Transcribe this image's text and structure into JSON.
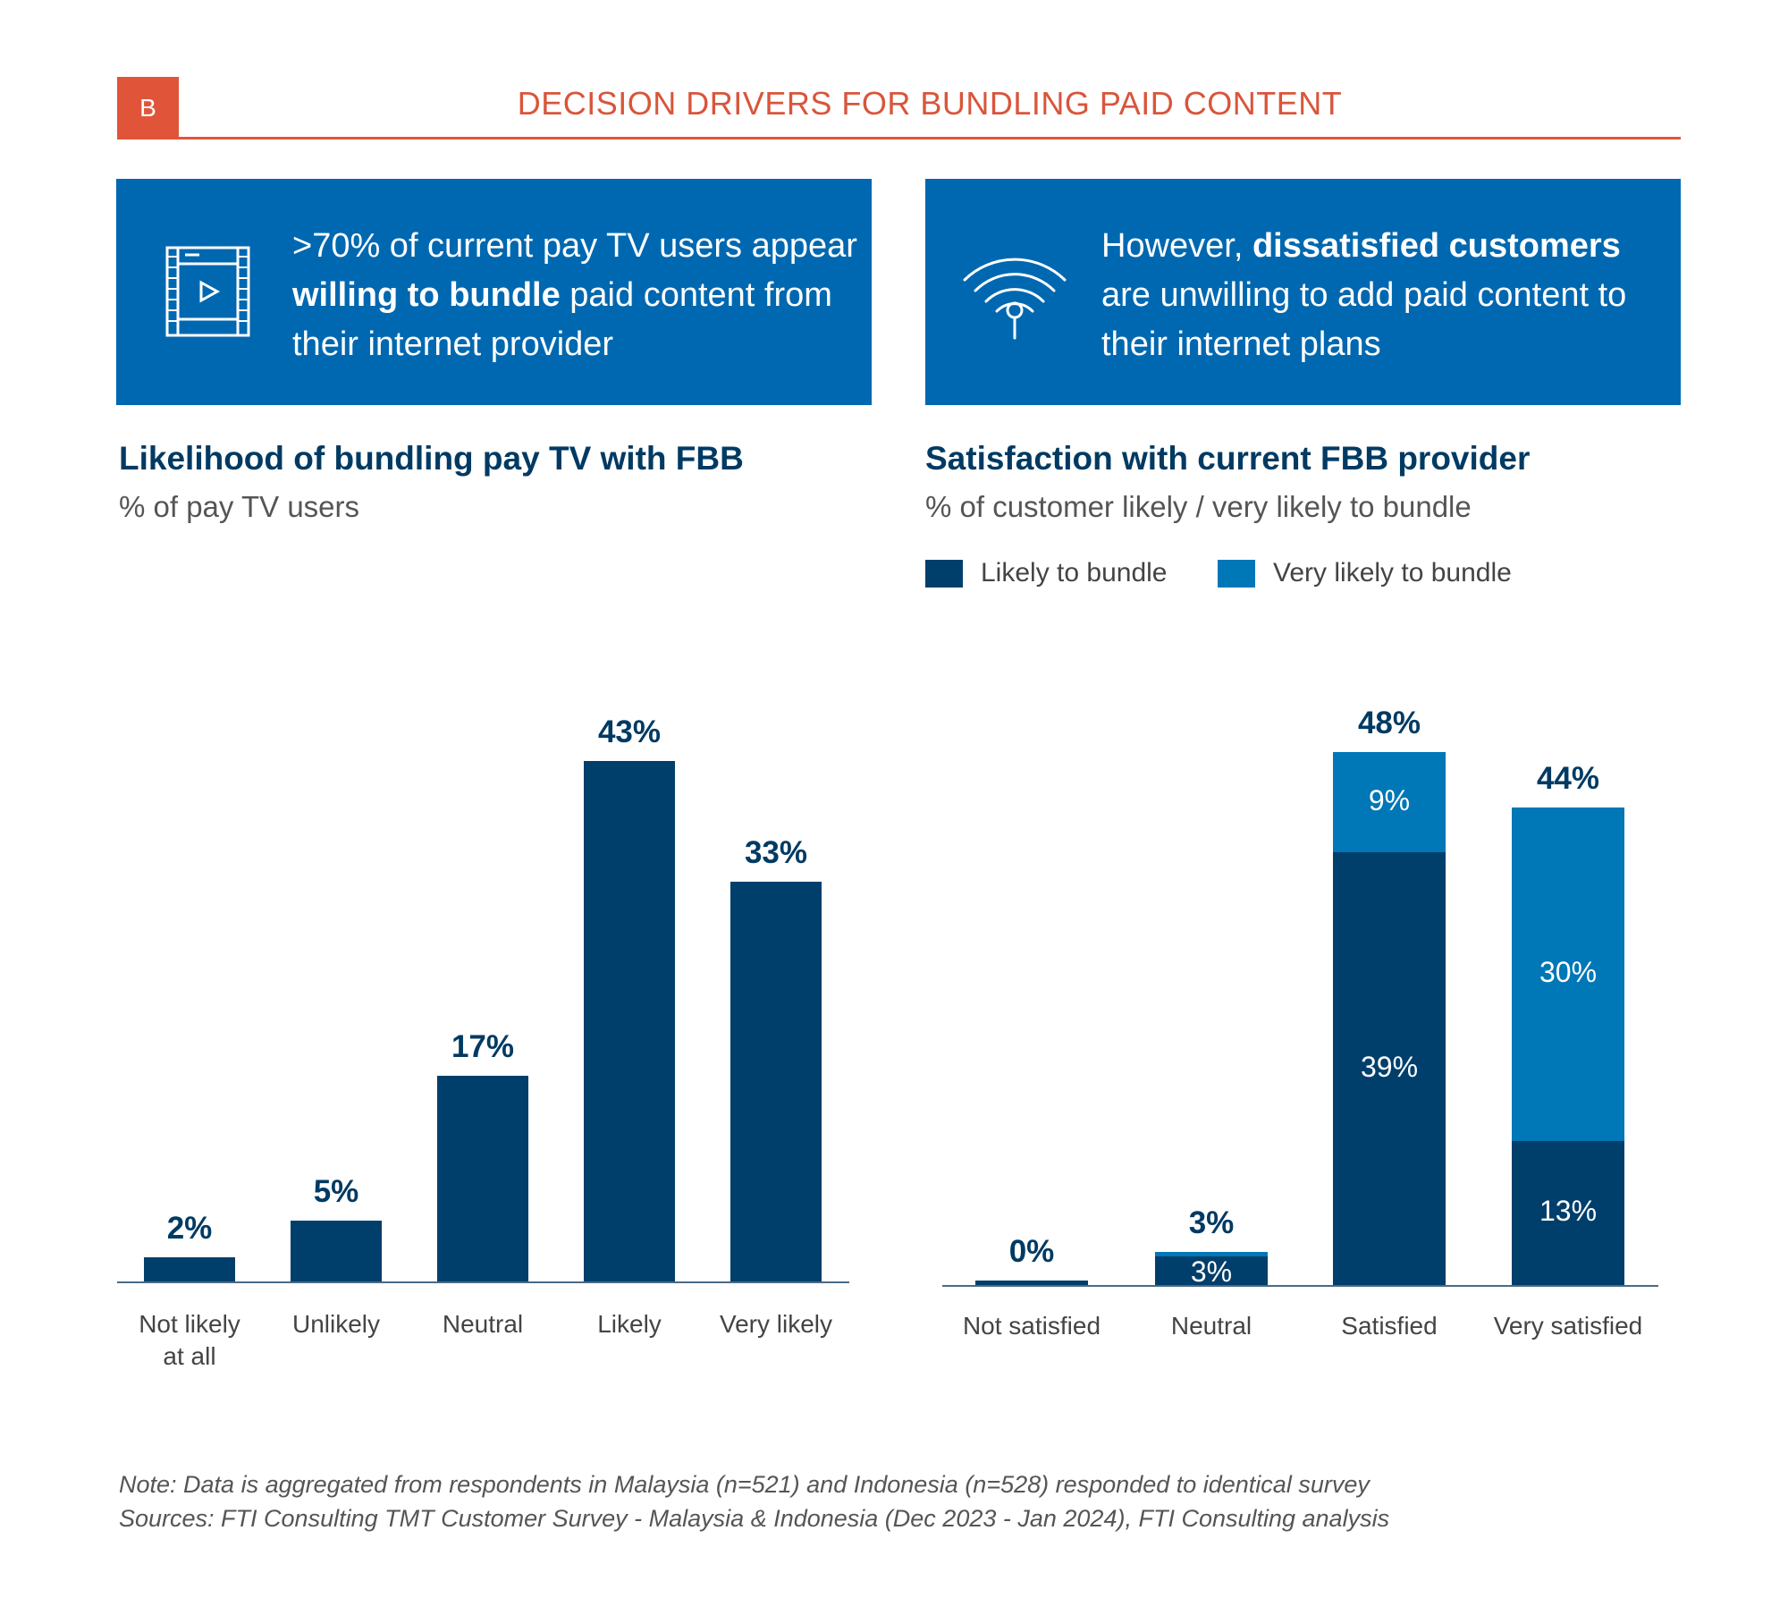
{
  "header": {
    "badge": "B",
    "title": "DECISION DRIVERS FOR BUNDLING PAID CONTENT"
  },
  "callouts": [
    {
      "icon": "film-play-icon",
      "parts": [
        ">70% of current pay TV users appear ",
        "willing to bundle",
        " paid content from their internet provider"
      ]
    },
    {
      "icon": "wifi-signal-icon",
      "parts": [
        "However, ",
        "dissatisfied customers",
        " are unwilling to add paid content to their internet plans"
      ]
    }
  ],
  "colors": {
    "dark": "#003f6b",
    "light": "#0077b6",
    "box": "#0068b0",
    "accent": "#e0553a"
  },
  "chart_data": [
    {
      "type": "bar",
      "title": "Likelihood of bundling pay TV with FBB",
      "subtitle": "% of pay TV users",
      "categories": [
        "Not likely at all",
        "Unlikely",
        "Neutral",
        "Likely",
        "Very likely"
      ],
      "values": [
        2,
        5,
        17,
        43,
        33
      ],
      "labels": [
        "2%",
        "5%",
        "17%",
        "43%",
        "33%"
      ],
      "ylim": [
        0,
        45
      ],
      "grid": false
    },
    {
      "type": "bar",
      "stacked": true,
      "title": "Satisfaction with current FBB provider",
      "subtitle": "% of customer likely / very likely to bundle",
      "categories": [
        "Not satisfied",
        "Neutral",
        "Satisfied",
        "Very satisfied"
      ],
      "series": [
        {
          "name": "Likely to bundle",
          "values": [
            0,
            2.6,
            39,
            13
          ],
          "labels": [
            "",
            "3%",
            "39%",
            "13%"
          ]
        },
        {
          "name": "Very likely to bundle",
          "values": [
            0,
            0.4,
            9,
            30
          ],
          "labels": [
            "",
            "",
            "9%",
            "30%"
          ]
        }
      ],
      "totals": [
        "0%",
        "3%",
        "48%",
        "44%"
      ],
      "ylim": [
        0,
        50
      ],
      "grid": false,
      "legend": "top-left"
    }
  ],
  "notes": [
    "Note: Data is aggregated from respondents in Malaysia (n=521) and Indonesia (n=528) responded to identical survey",
    "Sources: FTI Consulting TMT Customer Survey - Malaysia & Indonesia (Dec 2023 - Jan 2024), FTI Consulting analysis"
  ]
}
